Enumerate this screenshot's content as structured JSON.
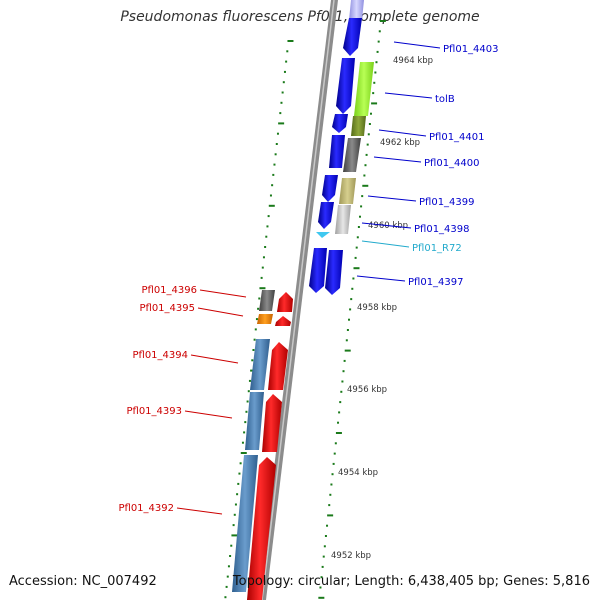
{
  "title": "Pseudomonas fluorescens Pf0-1, complete genome",
  "footer": {
    "accession": "Accession: NC_007492",
    "summary": "Topology: circular; Length: 6,438,405 bp; Genes: 5,816"
  },
  "colors": {
    "forward_label": "#0000cc",
    "reverse_label": "#cc0000",
    "rna_label": "#22aacc",
    "tick": "#1a7a1a",
    "backbone": "#8a8a8a"
  },
  "scale_labels": [
    "4964 kbp",
    "4962 kbp",
    "4960 kbp",
    "4958 kbp",
    "4956 kbp",
    "4954 kbp",
    "4952 kbp"
  ],
  "forward_genes": [
    {
      "label": "Pfl01_4403"
    },
    {
      "label": "tolB"
    },
    {
      "label": "Pfl01_4401"
    },
    {
      "label": "Pfl01_4400"
    },
    {
      "label": "Pfl01_4399"
    },
    {
      "label": "Pfl01_4398"
    },
    {
      "label": "Pfl01_R72"
    },
    {
      "label": "Pfl01_4397"
    }
  ],
  "reverse_genes": [
    {
      "label": "Pfl01_4396"
    },
    {
      "label": "Pfl01_4395"
    },
    {
      "label": "Pfl01_4394"
    },
    {
      "label": "Pfl01_4393"
    },
    {
      "label": "Pfl01_4392"
    }
  ]
}
